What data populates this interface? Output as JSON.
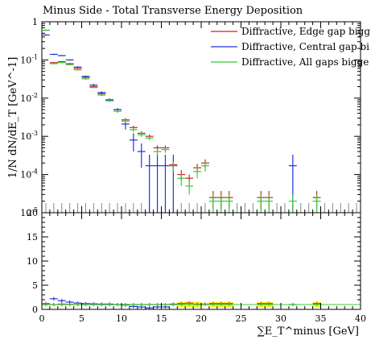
{
  "chart_data": {
    "type": "scatter",
    "title": "Minus Side - Total Transverse Energy Deposition",
    "xlabel": "∑E_T^minus [GeV]",
    "ylabel": "1/N dN/dE_T [GeV^-1]",
    "xlim": [
      0,
      40
    ],
    "ylim": [
      1e-05,
      1
    ],
    "ylog": true,
    "ratio_ylim": [
      0,
      20
    ],
    "grid": false,
    "legend_position": "top-right",
    "x_ticks": [
      "0",
      "5",
      "10",
      "15",
      "20",
      "25",
      "30",
      "35",
      "40"
    ],
    "y_ticks_main": [
      "10^-5",
      "10^-4",
      "10^-3",
      "10^-2",
      "10^-1",
      "1"
    ],
    "y_ticks_ratio": [
      "0",
      "5",
      "10",
      "15",
      "20"
    ],
    "bin_width": 1.0,
    "colors": {
      "edge": "#cc2222",
      "central": "#2233dd",
      "allgaps": "#33cc33",
      "band": "#ffff22",
      "ref": "#888888"
    },
    "series": [
      {
        "name": "Diffractive, Edge gap bigg",
        "color": "#cc2222",
        "x": [
          0.5,
          1.5,
          2.5,
          3.5,
          4.5,
          5.5,
          6.5,
          7.5,
          8.5,
          9.5,
          10.5,
          11.5,
          12.5,
          13.5,
          14.5,
          15.5,
          16.5,
          17.5,
          18.5,
          19.5,
          20.5,
          21.5,
          22.5,
          23.5,
          27.5,
          28.5,
          34.5
        ],
        "y": [
          0.6,
          0.085,
          0.09,
          0.08,
          0.06,
          0.035,
          0.02,
          0.013,
          0.009,
          0.005,
          0.0027,
          0.0017,
          0.0012,
          0.001,
          0.0005,
          0.0005,
          0.00018,
          0.0001,
          8e-05,
          0.00015,
          0.0002,
          2.5e-05,
          2.5e-05,
          2.5e-05,
          2.5e-05,
          2.5e-05,
          2.5e-05
        ],
        "err": [
          0.02,
          0.003,
          0.003,
          0.003,
          0.002,
          0.0015,
          0.001,
          0.0008,
          0.0006,
          0.0004,
          0.0003,
          0.0002,
          0.00015,
          0.00012,
          8e-05,
          8e-05,
          5e-05,
          3e-05,
          2e-05,
          4e-05,
          5e-05,
          1.2e-05,
          1.2e-05,
          1.2e-05,
          1.2e-05,
          1.2e-05,
          1.2e-05
        ]
      },
      {
        "name": "Diffractive, Central gap bi",
        "color": "#2233dd",
        "x": [
          0.5,
          1.5,
          2.5,
          3.5,
          4.5,
          5.5,
          6.5,
          7.5,
          8.5,
          9.5,
          10.5,
          11.5,
          12.5,
          13.5,
          14.5,
          15.5,
          16.5,
          31.5
        ],
        "y": [
          0.45,
          0.14,
          0.13,
          0.1,
          0.065,
          0.037,
          0.022,
          0.014,
          0.009,
          0.005,
          0.0021,
          0.0008,
          0.0004,
          0.00017,
          0.00017,
          0.00017,
          0.00017,
          0.00017
        ],
        "err": [
          0.02,
          0.005,
          0.005,
          0.004,
          0.003,
          0.002,
          0.0015,
          0.001,
          0.0008,
          0.0005,
          0.0006,
          0.0004,
          0.00025,
          0.00016,
          0.00016,
          0.00016,
          0.00016,
          0.00016
        ]
      },
      {
        "name": "Diffractive, All gaps bigge",
        "color": "#33cc33",
        "x": [
          0.5,
          1.5,
          2.5,
          3.5,
          4.5,
          5.5,
          6.5,
          7.5,
          8.5,
          9.5,
          10.5,
          11.5,
          12.5,
          13.5,
          14.5,
          15.5,
          16.5,
          17.5,
          18.5,
          19.5,
          20.5,
          21.5,
          22.5,
          23.5,
          27.5,
          28.5,
          31.5,
          34.5
        ],
        "y": [
          0.6,
          0.08,
          0.085,
          0.075,
          0.055,
          0.032,
          0.019,
          0.012,
          0.0085,
          0.0045,
          0.0025,
          0.0015,
          0.0011,
          0.0009,
          0.0004,
          0.00045,
          0.00017,
          8e-05,
          5e-05,
          0.00012,
          0.00017,
          2e-05,
          2e-05,
          2e-05,
          2e-05,
          2e-05,
          2e-05,
          2e-05
        ],
        "err": [
          0.02,
          0.003,
          0.003,
          0.003,
          0.002,
          0.0015,
          0.001,
          0.0008,
          0.0006,
          0.0004,
          0.0003,
          0.0002,
          0.00015,
          0.00012,
          8e-05,
          8e-05,
          5e-05,
          3e-05,
          2e-05,
          4e-05,
          5e-05,
          1e-05,
          1e-05,
          1e-05,
          1e-05,
          1e-05,
          1e-05,
          1e-05
        ]
      }
    ],
    "ratio_series": [
      {
        "name": "Diffractive, Edge gap bigg",
        "color": "#cc2222",
        "x": [
          0.5,
          1.5,
          2.5,
          3.5,
          4.5,
          5.5,
          6.5,
          7.5,
          8.5,
          9.5,
          10.5,
          11.5,
          12.5,
          13.5,
          14.5,
          15.5,
          16.5,
          17.5,
          18.5,
          19.5,
          20.5,
          21.5,
          22.5,
          23.5,
          27.5,
          28.5,
          34.5
        ],
        "y": [
          1.2,
          1.0,
          1.1,
          1.05,
          1.0,
          1.0,
          1.0,
          1.0,
          1.0,
          1.0,
          1.0,
          1.0,
          1.0,
          1.0,
          1.0,
          1.0,
          1.1,
          1.2,
          1.3,
          1.1,
          1.1,
          1.2,
          1.2,
          1.2,
          1.2,
          1.2,
          1.2
        ]
      },
      {
        "name": "Diffractive, Central gap bi",
        "color": "#2233dd",
        "x": [
          0.5,
          1.5,
          2.5,
          3.5,
          4.5,
          5.5,
          6.5,
          7.5,
          8.5,
          9.5,
          10.5,
          11.5,
          12.5,
          13.5,
          14.5,
          15.5,
          16.5,
          31.5
        ],
        "y": [
          1.0,
          2.2,
          1.8,
          1.5,
          1.3,
          1.2,
          1.15,
          1.1,
          1.1,
          1.0,
          0.9,
          0.6,
          0.5,
          0.3,
          0.5,
          0.5,
          1.0,
          1.0
        ]
      },
      {
        "name": "Diffractive, All gaps bigge",
        "color": "#33cc33",
        "x": [
          0.5,
          1.5,
          2.5,
          3.5,
          4.5,
          5.5,
          6.5,
          7.5,
          8.5,
          9.5,
          10.5,
          11.5,
          12.5,
          13.5,
          14.5,
          15.5,
          16.5,
          17.5,
          18.5,
          19.5,
          20.5,
          21.5,
          22.5,
          23.5,
          27.5,
          28.5,
          31.5,
          34.5
        ],
        "y": [
          1.0,
          1.0,
          1.0,
          1.0,
          1.0,
          1.0,
          1.0,
          1.0,
          1.0,
          1.0,
          1.0,
          1.0,
          1.0,
          1.0,
          1.0,
          1.0,
          1.0,
          1.0,
          1.0,
          1.0,
          1.0,
          1.0,
          1.0,
          1.0,
          1.0,
          1.0,
          1.0,
          1.0
        ]
      }
    ],
    "ratio_band_bins": [
      17.5,
      18.5,
      19.5,
      21.5,
      22.5,
      23.5,
      27.5,
      28.5,
      34.5
    ],
    "reference_spikes_x": [
      0.5,
      1.5,
      2.5,
      3.5,
      4.5,
      5.5,
      6.5,
      7.5,
      8.5,
      9.5,
      10.5,
      11.5,
      12.5,
      13.5,
      14.5,
      15.5,
      16.5,
      17.5,
      18.5,
      19.5,
      20.5,
      21.5,
      22.5,
      23.5,
      24.5,
      25.5,
      26.5,
      27.5,
      28.5,
      29.5,
      30.5,
      31.5,
      32.5,
      33.5,
      34.5,
      35.5,
      36.5,
      37.5,
      38.5,
      39.5
    ]
  }
}
